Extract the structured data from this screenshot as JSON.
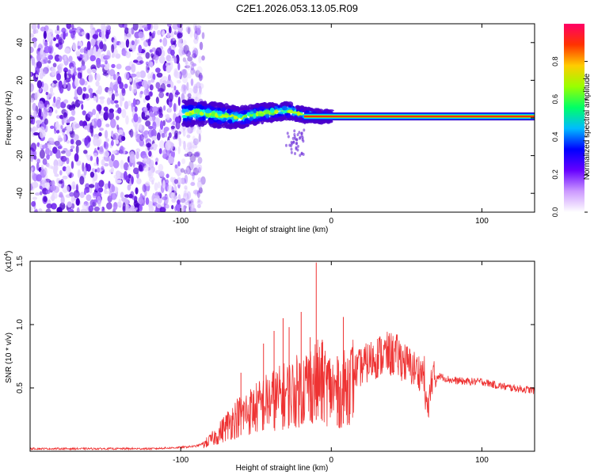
{
  "title": "C2E1.2026.053.13.05.R09",
  "colors": {
    "frame": "#000000",
    "snr_line": "#ee3333",
    "scatter": "#6a2bd9"
  },
  "chart_data": [
    {
      "id": "spectrogram",
      "type": "heatmap",
      "xlabel": "Height of straight line (km)",
      "ylabel": "Frequency (Hz)",
      "xlim": [
        -200,
        135
      ],
      "ylim": [
        -50,
        50
      ],
      "xticks": [
        {
          "v": -100,
          "label": "-100"
        },
        {
          "v": 0,
          "label": "0"
        },
        {
          "v": 100,
          "label": "100"
        }
      ],
      "yticks": [
        {
          "v": -40,
          "label": "-40"
        },
        {
          "v": -20,
          "label": "-20"
        },
        {
          "v": 0,
          "label": "0"
        },
        {
          "v": 20,
          "label": "20"
        },
        {
          "v": 40,
          "label": "40"
        }
      ],
      "colorbar": {
        "label": "Normalized spectral amplitude",
        "range": [
          0,
          1
        ],
        "ticks": [
          {
            "v": 0,
            "label": "0.0"
          },
          {
            "v": 0.2,
            "label": "0.2"
          },
          {
            "v": 0.4,
            "label": "0.4"
          },
          {
            "v": 0.6,
            "label": "0.6"
          },
          {
            "v": 0.8,
            "label": "0.8"
          }
        ],
        "stops": [
          "#ffffff",
          "#cc99ff",
          "#6600ff",
          "#0000ff",
          "#00bbff",
          "#00ff66",
          "#99ff00",
          "#ffcc00",
          "#ff3300",
          "#ff0066"
        ]
      },
      "noise_region_x": [
        -200,
        -85
      ],
      "track": [
        {
          "x": -98,
          "y": 2
        },
        {
          "x": -90,
          "y": 3
        },
        {
          "x": -80,
          "y": 2
        },
        {
          "x": -70,
          "y": 1
        },
        {
          "x": -60,
          "y": 0
        },
        {
          "x": -50,
          "y": 2
        },
        {
          "x": -40,
          "y": 3
        },
        {
          "x": -30,
          "y": 4
        },
        {
          "x": -20,
          "y": 2
        },
        {
          "x": -10,
          "y": 1
        },
        {
          "x": 0,
          "y": 1
        },
        {
          "x": 135,
          "y": 1
        }
      ],
      "carrier_frequency": 0.8
    },
    {
      "id": "snr",
      "type": "line",
      "xlabel": "Height of straight line (km)",
      "ylabel": "SNR (10 * v/v)",
      "yscale_label": "(x10",
      "yscale_exp": "4",
      "xlim": [
        -200,
        135
      ],
      "ylim": [
        0,
        1.5
      ],
      "xticks": [
        {
          "v": -100,
          "label": "-100"
        },
        {
          "v": 0,
          "label": "0"
        },
        {
          "v": 100,
          "label": "100"
        }
      ],
      "yticks": [
        {
          "v": 0.5,
          "label": "0.5"
        },
        {
          "v": 1.0,
          "label": "1.0"
        },
        {
          "v": 1.5,
          "label": "1.5"
        }
      ],
      "series": [
        {
          "x": [
            -200,
            -180,
            -160,
            -140,
            -120,
            -100,
            -90,
            -85,
            -80,
            -75,
            -70,
            -65,
            -60,
            -55,
            -50,
            -45,
            -40,
            -35,
            -30,
            -25,
            -20,
            -15,
            -10,
            -5,
            0,
            5,
            10,
            15,
            20,
            25,
            30,
            35,
            40,
            45,
            50,
            55,
            60,
            65,
            70,
            75,
            80,
            90,
            100,
            110,
            120,
            135
          ],
          "y": [
            0.02,
            0.02,
            0.02,
            0.02,
            0.02,
            0.03,
            0.04,
            0.06,
            0.1,
            0.15,
            0.22,
            0.28,
            0.32,
            0.35,
            0.38,
            0.42,
            0.45,
            0.47,
            0.5,
            0.52,
            0.55,
            0.6,
            0.62,
            0.6,
            0.55,
            0.5,
            0.58,
            0.65,
            0.7,
            0.74,
            0.78,
            0.8,
            0.8,
            0.78,
            0.72,
            0.68,
            0.65,
            0.62,
            0.6,
            0.58,
            0.56,
            0.55,
            0.55,
            0.52,
            0.5,
            0.48
          ]
        }
      ],
      "spikes": [
        {
          "x": -60,
          "y": 0.62
        },
        {
          "x": -45,
          "y": 0.85
        },
        {
          "x": -38,
          "y": 0.95
        },
        {
          "x": -32,
          "y": 1.05
        },
        {
          "x": -28,
          "y": 0.98
        },
        {
          "x": -20,
          "y": 1.1
        },
        {
          "x": -14,
          "y": 0.9
        },
        {
          "x": -10,
          "y": 1.49
        },
        {
          "x": -6,
          "y": 0.88
        },
        {
          "x": 4,
          "y": 0.75
        },
        {
          "x": 8,
          "y": 1.06
        },
        {
          "x": 12,
          "y": 0.72
        }
      ]
    }
  ]
}
